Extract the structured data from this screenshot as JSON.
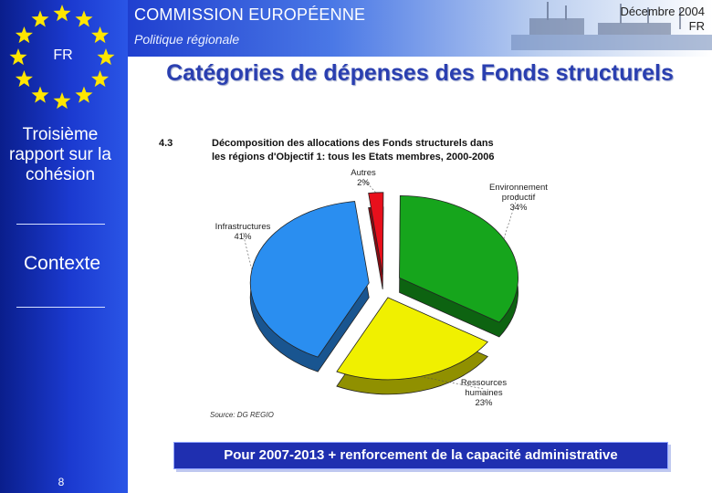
{
  "header": {
    "commission": "COMMISSION EUROPÉENNE",
    "subtitle": "Politique régionale",
    "date": "Décembre 2004",
    "lang": "FR"
  },
  "sidebar": {
    "flag_label": "FR",
    "title": "Troisième rapport sur la cohésion",
    "section": "Contexte",
    "page_number": "8"
  },
  "slide": {
    "title": "Catégories de dépenses des Fonds structurels",
    "footer_text": "Pour 2007-2013 + renforcement de la capacité administrative"
  },
  "chart_data": {
    "type": "pie",
    "figure_number": "4.3",
    "title": "Décomposition des allocations des Fonds structurels dans les régions d'Objectif 1: tous les Etats membres, 2000-2006",
    "source": "Source: DG REGIO",
    "slices": [
      {
        "label": "Autres",
        "value": 2,
        "value_label": "2%",
        "color": "#e8101c"
      },
      {
        "label": "Environnement productif",
        "value": 34,
        "value_label": "34%",
        "color": "#16a51c"
      },
      {
        "label": "Ressources humaines",
        "value": 23,
        "value_label": "23%",
        "color": "#f0f000"
      },
      {
        "label": "Infrastructures",
        "value": 41,
        "value_label": "41%",
        "color": "#2a8ef0"
      }
    ]
  }
}
